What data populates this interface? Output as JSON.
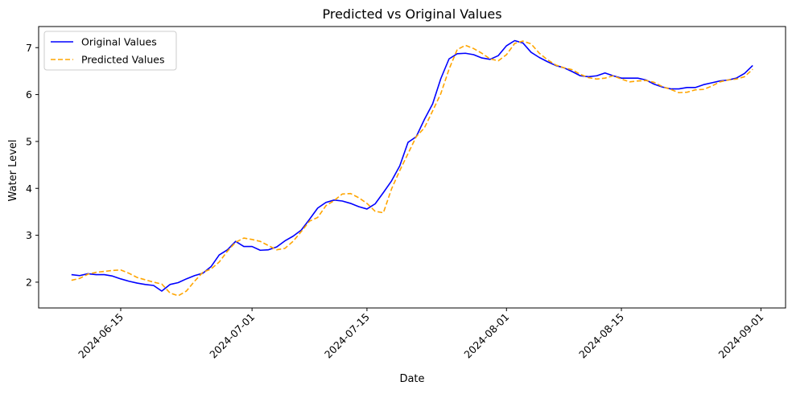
{
  "chart_data": {
    "type": "line",
    "title": "Predicted vs Original Values",
    "xlabel": "Date",
    "ylabel": "Water Level",
    "x_axis_type": "date",
    "xlim": [
      "2024-06-05",
      "2024-09-04"
    ],
    "ylim": [
      1.45,
      7.45
    ],
    "x_ticks": [
      "2024-06-15",
      "2024-07-01",
      "2024-07-15",
      "2024-08-01",
      "2024-08-15",
      "2024-09-01"
    ],
    "y_ticks": [
      2,
      3,
      4,
      5,
      6,
      7
    ],
    "grid": false,
    "legend_position": "top-left",
    "series": [
      {
        "name": "Original Values",
        "color": "#0000ff",
        "line_style": "solid",
        "points": [
          [
            "2024-06-09",
            2.16
          ],
          [
            "2024-06-10",
            2.14
          ],
          [
            "2024-06-11",
            2.18
          ],
          [
            "2024-06-12",
            2.16
          ],
          [
            "2024-06-13",
            2.16
          ],
          [
            "2024-06-14",
            2.13
          ],
          [
            "2024-06-15",
            2.07
          ],
          [
            "2024-06-16",
            2.02
          ],
          [
            "2024-06-17",
            1.98
          ],
          [
            "2024-06-18",
            1.95
          ],
          [
            "2024-06-19",
            1.93
          ],
          [
            "2024-06-20",
            1.81
          ],
          [
            "2024-06-21",
            1.95
          ],
          [
            "2024-06-22",
            1.99
          ],
          [
            "2024-06-23",
            2.07
          ],
          [
            "2024-06-24",
            2.14
          ],
          [
            "2024-06-25",
            2.19
          ],
          [
            "2024-06-26",
            2.33
          ],
          [
            "2024-06-27",
            2.58
          ],
          [
            "2024-06-28",
            2.69
          ],
          [
            "2024-06-29",
            2.87
          ],
          [
            "2024-06-30",
            2.76
          ],
          [
            "2024-07-01",
            2.76
          ],
          [
            "2024-07-02",
            2.68
          ],
          [
            "2024-07-03",
            2.69
          ],
          [
            "2024-07-04",
            2.75
          ],
          [
            "2024-07-05",
            2.88
          ],
          [
            "2024-07-06",
            2.98
          ],
          [
            "2024-07-07",
            3.11
          ],
          [
            "2024-07-08",
            3.34
          ],
          [
            "2024-07-09",
            3.58
          ],
          [
            "2024-07-10",
            3.7
          ],
          [
            "2024-07-11",
            3.75
          ],
          [
            "2024-07-12",
            3.73
          ],
          [
            "2024-07-13",
            3.68
          ],
          [
            "2024-07-14",
            3.61
          ],
          [
            "2024-07-15",
            3.56
          ],
          [
            "2024-07-16",
            3.67
          ],
          [
            "2024-07-17",
            3.91
          ],
          [
            "2024-07-18",
            4.16
          ],
          [
            "2024-07-19",
            4.48
          ],
          [
            "2024-07-20",
            4.98
          ],
          [
            "2024-07-21",
            5.1
          ],
          [
            "2024-07-22",
            5.47
          ],
          [
            "2024-07-23",
            5.8
          ],
          [
            "2024-07-24",
            6.34
          ],
          [
            "2024-07-25",
            6.76
          ],
          [
            "2024-07-26",
            6.87
          ],
          [
            "2024-07-27",
            6.88
          ],
          [
            "2024-07-28",
            6.85
          ],
          [
            "2024-07-29",
            6.78
          ],
          [
            "2024-07-30",
            6.75
          ],
          [
            "2024-07-31",
            6.83
          ],
          [
            "2024-08-01",
            7.04
          ],
          [
            "2024-08-02",
            7.15
          ],
          [
            "2024-08-03",
            7.1
          ],
          [
            "2024-08-04",
            6.9
          ],
          [
            "2024-08-05",
            6.79
          ],
          [
            "2024-08-06",
            6.7
          ],
          [
            "2024-08-07",
            6.62
          ],
          [
            "2024-08-08",
            6.57
          ],
          [
            "2024-08-09",
            6.49
          ],
          [
            "2024-08-10",
            6.4
          ],
          [
            "2024-08-11",
            6.38
          ],
          [
            "2024-08-12",
            6.4
          ],
          [
            "2024-08-13",
            6.46
          ],
          [
            "2024-08-14",
            6.4
          ],
          [
            "2024-08-15",
            6.35
          ],
          [
            "2024-08-16",
            6.35
          ],
          [
            "2024-08-17",
            6.35
          ],
          [
            "2024-08-18",
            6.31
          ],
          [
            "2024-08-19",
            6.22
          ],
          [
            "2024-08-20",
            6.16
          ],
          [
            "2024-08-21",
            6.12
          ],
          [
            "2024-08-22",
            6.12
          ],
          [
            "2024-08-23",
            6.15
          ],
          [
            "2024-08-24",
            6.15
          ],
          [
            "2024-08-25",
            6.21
          ],
          [
            "2024-08-26",
            6.25
          ],
          [
            "2024-08-27",
            6.29
          ],
          [
            "2024-08-28",
            6.31
          ],
          [
            "2024-08-29",
            6.35
          ],
          [
            "2024-08-30",
            6.45
          ],
          [
            "2024-08-31",
            6.62
          ]
        ]
      },
      {
        "name": "Predicted Values",
        "color": "#ffa500",
        "line_style": "dashed",
        "points": [
          [
            "2024-06-09",
            2.04
          ],
          [
            "2024-06-10",
            2.08
          ],
          [
            "2024-06-11",
            2.17
          ],
          [
            "2024-06-12",
            2.21
          ],
          [
            "2024-06-13",
            2.23
          ],
          [
            "2024-06-14",
            2.25
          ],
          [
            "2024-06-15",
            2.26
          ],
          [
            "2024-06-16",
            2.19
          ],
          [
            "2024-06-17",
            2.1
          ],
          [
            "2024-06-18",
            2.05
          ],
          [
            "2024-06-19",
            2.0
          ],
          [
            "2024-06-20",
            1.96
          ],
          [
            "2024-06-21",
            1.77
          ],
          [
            "2024-06-22",
            1.71
          ],
          [
            "2024-06-23",
            1.81
          ],
          [
            "2024-06-24",
            2.02
          ],
          [
            "2024-06-25",
            2.21
          ],
          [
            "2024-06-26",
            2.28
          ],
          [
            "2024-06-27",
            2.43
          ],
          [
            "2024-06-28",
            2.66
          ],
          [
            "2024-06-29",
            2.85
          ],
          [
            "2024-06-30",
            2.94
          ],
          [
            "2024-07-01",
            2.91
          ],
          [
            "2024-07-02",
            2.87
          ],
          [
            "2024-07-03",
            2.78
          ],
          [
            "2024-07-04",
            2.69
          ],
          [
            "2024-07-05",
            2.72
          ],
          [
            "2024-07-06",
            2.87
          ],
          [
            "2024-07-07",
            3.08
          ],
          [
            "2024-07-08",
            3.3
          ],
          [
            "2024-07-09",
            3.38
          ],
          [
            "2024-07-10",
            3.63
          ],
          [
            "2024-07-11",
            3.74
          ],
          [
            "2024-07-12",
            3.88
          ],
          [
            "2024-07-13",
            3.89
          ],
          [
            "2024-07-14",
            3.8
          ],
          [
            "2024-07-15",
            3.68
          ],
          [
            "2024-07-16",
            3.51
          ],
          [
            "2024-07-17",
            3.48
          ],
          [
            "2024-07-18",
            3.99
          ],
          [
            "2024-07-19",
            4.38
          ],
          [
            "2024-07-20",
            4.74
          ],
          [
            "2024-07-21",
            5.1
          ],
          [
            "2024-07-22",
            5.29
          ],
          [
            "2024-07-23",
            5.65
          ],
          [
            "2024-07-24",
            6.02
          ],
          [
            "2024-07-25",
            6.54
          ],
          [
            "2024-07-26",
            6.96
          ],
          [
            "2024-07-27",
            7.05
          ],
          [
            "2024-07-28",
            6.98
          ],
          [
            "2024-07-29",
            6.88
          ],
          [
            "2024-07-30",
            6.76
          ],
          [
            "2024-07-31",
            6.72
          ],
          [
            "2024-08-01",
            6.85
          ],
          [
            "2024-08-02",
            7.09
          ],
          [
            "2024-08-03",
            7.14
          ],
          [
            "2024-08-04",
            7.08
          ],
          [
            "2024-08-05",
            6.88
          ],
          [
            "2024-08-06",
            6.74
          ],
          [
            "2024-08-07",
            6.63
          ],
          [
            "2024-08-08",
            6.57
          ],
          [
            "2024-08-09",
            6.53
          ],
          [
            "2024-08-10",
            6.43
          ],
          [
            "2024-08-11",
            6.36
          ],
          [
            "2024-08-12",
            6.33
          ],
          [
            "2024-08-13",
            6.35
          ],
          [
            "2024-08-14",
            6.4
          ],
          [
            "2024-08-15",
            6.33
          ],
          [
            "2024-08-16",
            6.27
          ],
          [
            "2024-08-17",
            6.29
          ],
          [
            "2024-08-18",
            6.3
          ],
          [
            "2024-08-19",
            6.26
          ],
          [
            "2024-08-20",
            6.17
          ],
          [
            "2024-08-21",
            6.11
          ],
          [
            "2024-08-22",
            6.04
          ],
          [
            "2024-08-23",
            6.05
          ],
          [
            "2024-08-24",
            6.1
          ],
          [
            "2024-08-25",
            6.11
          ],
          [
            "2024-08-26",
            6.18
          ],
          [
            "2024-08-27",
            6.27
          ],
          [
            "2024-08-28",
            6.31
          ],
          [
            "2024-08-29",
            6.33
          ],
          [
            "2024-08-30",
            6.38
          ],
          [
            "2024-08-31",
            6.54
          ]
        ]
      }
    ]
  }
}
